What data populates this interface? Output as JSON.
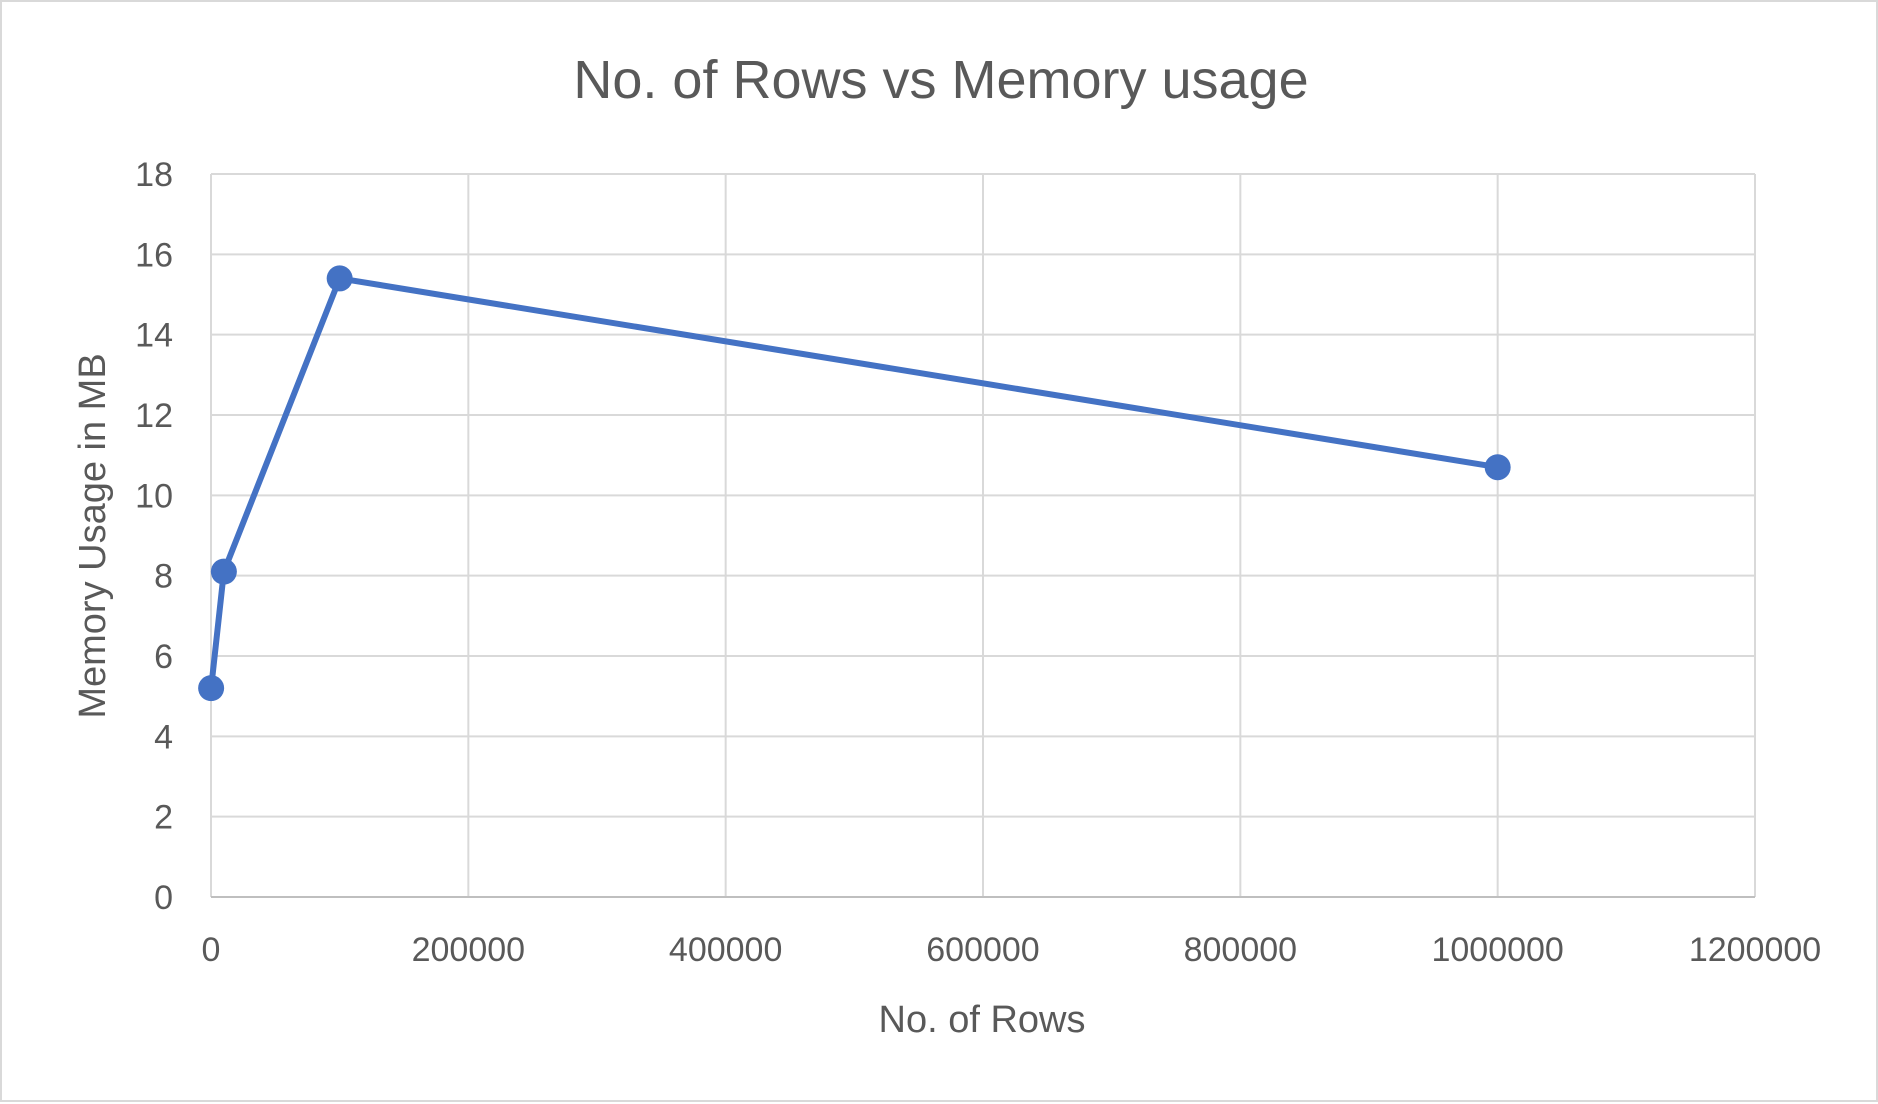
{
  "chart_data": {
    "type": "line",
    "title": "No. of Rows vs Memory usage",
    "xlabel": "No. of Rows",
    "ylabel": "Memory Usage in MB",
    "xlim": [
      0,
      1200000
    ],
    "ylim": [
      0,
      18
    ],
    "x_ticks": [
      0,
      200000,
      400000,
      600000,
      800000,
      1000000,
      1200000
    ],
    "y_ticks": [
      0,
      2,
      4,
      6,
      8,
      10,
      12,
      14,
      16,
      18
    ],
    "grid": true,
    "legend": "none",
    "series": [
      {
        "color": "#4472C4",
        "x": [
          100,
          10000,
          100000,
          1000000
        ],
        "y": [
          5.2,
          8.1,
          15.4,
          10.7
        ]
      }
    ]
  }
}
